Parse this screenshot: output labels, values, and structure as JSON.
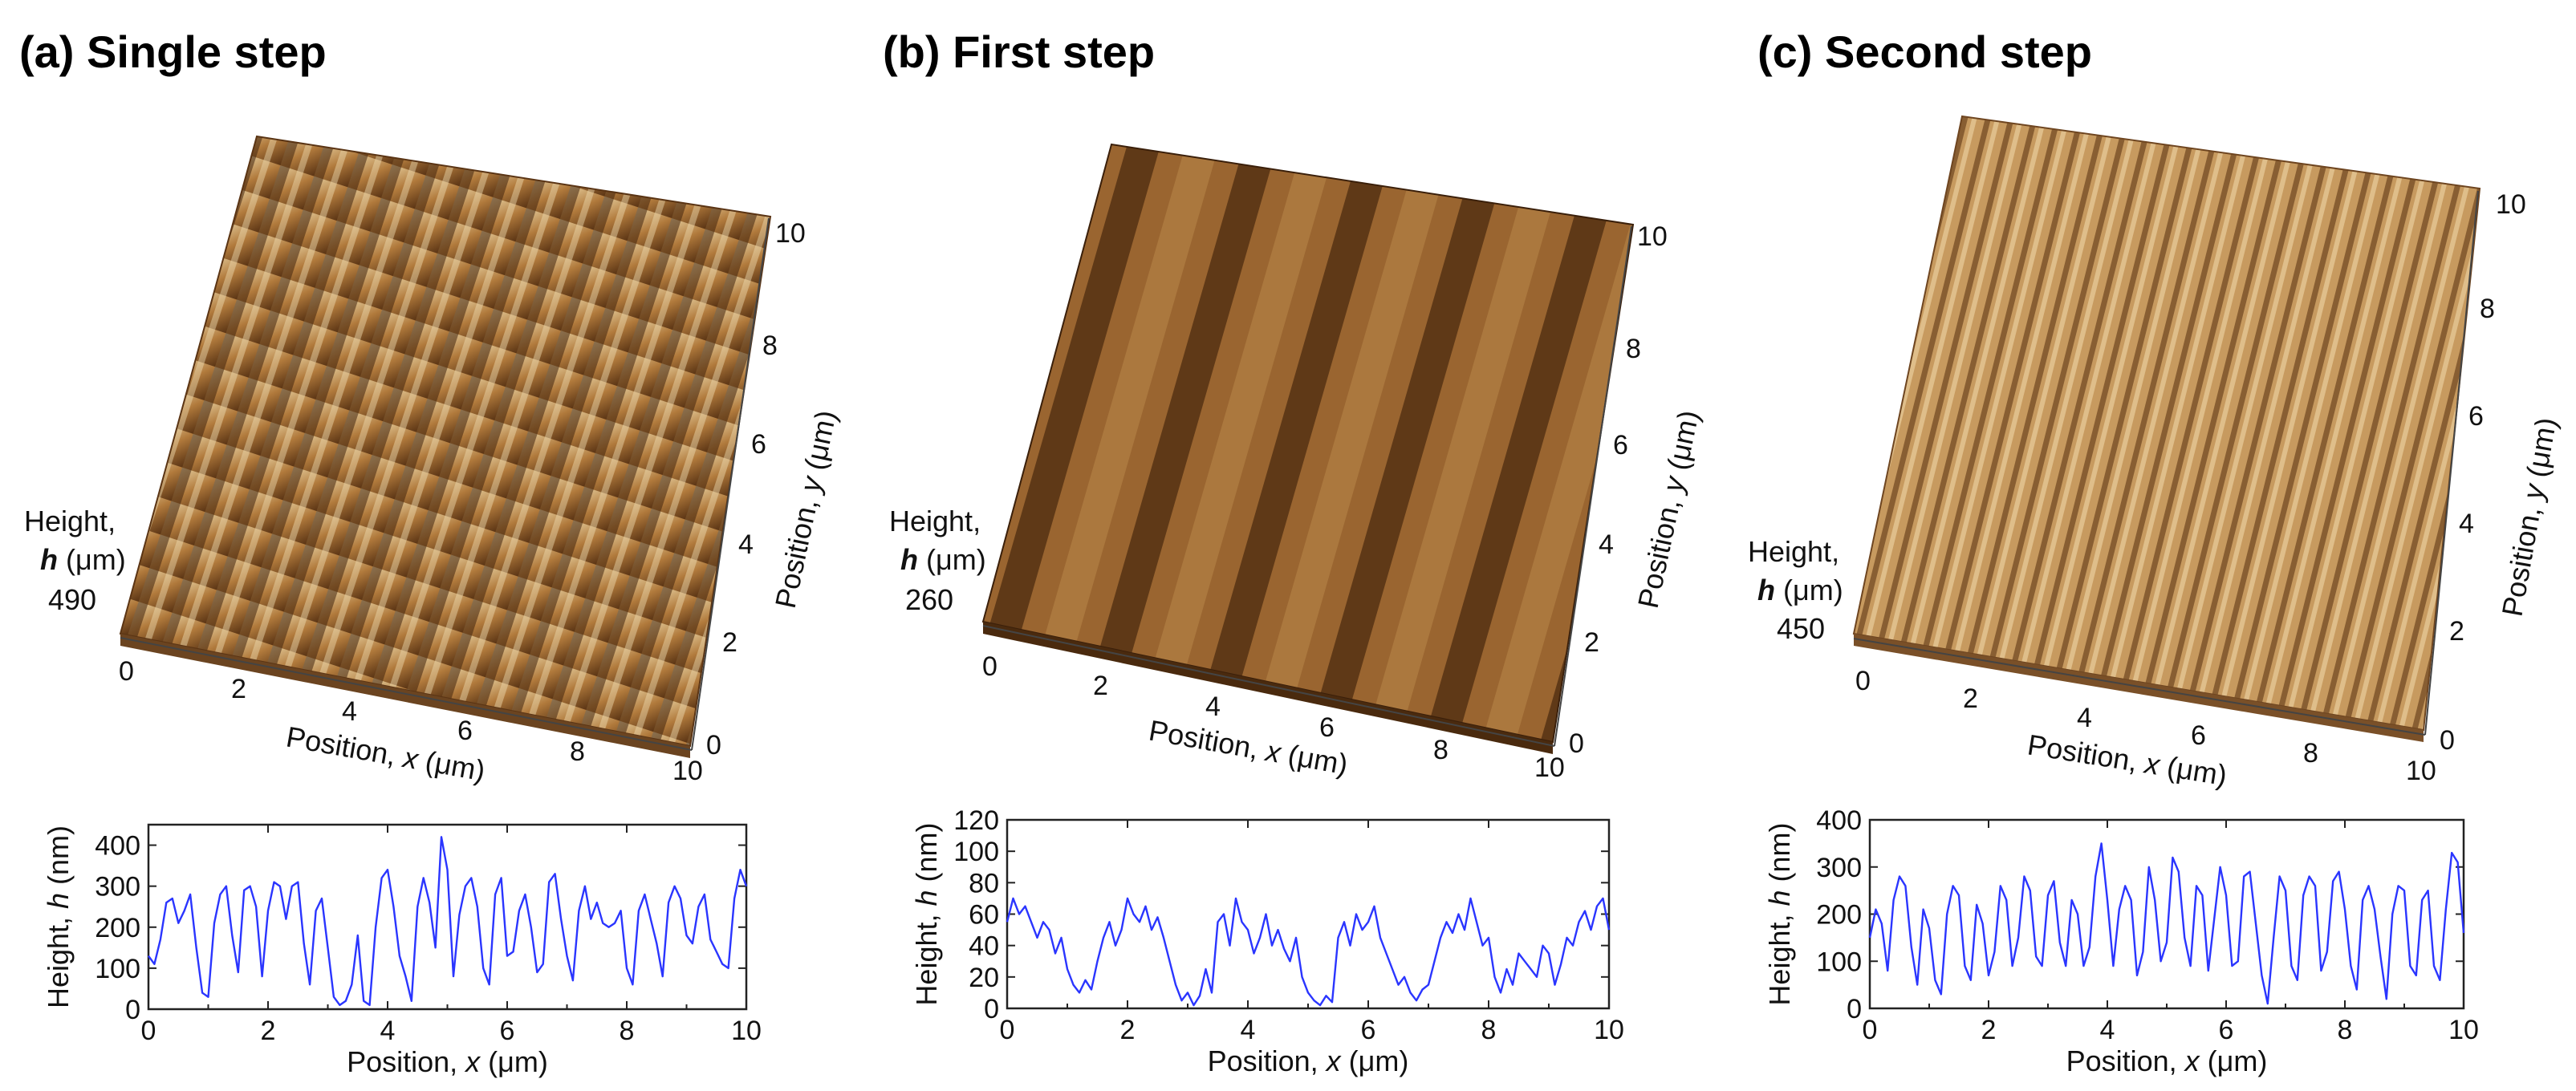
{
  "figure": {
    "panels": [
      {
        "id": "a",
        "title": "(a) Single step",
        "surface": {
          "height_label_line1": "Height,",
          "height_label_italic": "h",
          "height_label_unit": " (μm)",
          "height_value": "490",
          "x_label_prefix": "Position, ",
          "x_label_italic": "x",
          "x_label_unit": " (μm)",
          "y_label_prefix": "Position, ",
          "y_label_italic": "y",
          "y_label_unit": " (μm)",
          "x_ticks": [
            "0",
            "2",
            "4",
            "6",
            "8",
            "10"
          ],
          "y_ticks": [
            "0",
            "2",
            "4",
            "6",
            "8",
            "10"
          ],
          "colors": {
            "top": "#e6cf9f",
            "mid": "#b17a3c",
            "dark": "#3f220c"
          }
        }
      },
      {
        "id": "b",
        "title": "(b) First step",
        "surface": {
          "height_label_line1": "Height,",
          "height_label_italic": "h",
          "height_label_unit": " (μm)",
          "height_value": "260",
          "x_label_prefix": "Position, ",
          "x_label_italic": "x",
          "x_label_unit": " (μm)",
          "y_label_prefix": "Position, ",
          "y_label_italic": "y",
          "y_label_unit": " (μm)",
          "x_ticks": [
            "0",
            "2",
            "4",
            "6",
            "8",
            "10"
          ],
          "y_ticks": [
            "0",
            "2",
            "4",
            "6",
            "8",
            "10"
          ],
          "colors": {
            "top": "#b88249",
            "mid": "#8c5a28",
            "dark": "#3a1f0a"
          }
        }
      },
      {
        "id": "c",
        "title": "(c) Second step",
        "surface": {
          "height_label_line1": "Height,",
          "height_label_italic": "h",
          "height_label_unit": " (μm)",
          "height_value": "450",
          "x_label_prefix": "Position, ",
          "x_label_italic": "x",
          "x_label_unit": " (μm)",
          "y_label_prefix": "Position, ",
          "y_label_italic": "y",
          "y_label_unit": " (μm)",
          "x_ticks": [
            "0",
            "2",
            "4",
            "6",
            "8",
            "10"
          ],
          "y_ticks": [
            "0",
            "2",
            "4",
            "6",
            "8",
            "10"
          ],
          "colors": {
            "top": "#dcb77f",
            "mid": "#b48347",
            "dark": "#5e3a17"
          }
        }
      }
    ],
    "line_color": "#2a35ff"
  },
  "chart_data": [
    {
      "type": "line",
      "panel": "a",
      "xlabel": "Position, x (μm)",
      "ylabel": "Height, h (nm)",
      "xlim": [
        0,
        10
      ],
      "ylim": [
        0,
        450
      ],
      "xticks": [
        0,
        2,
        4,
        6,
        8,
        10
      ],
      "yticks": [
        0,
        100,
        200,
        300,
        400
      ],
      "x": [
        0,
        0.1,
        0.2,
        0.3,
        0.4,
        0.5,
        0.6,
        0.7,
        0.8,
        0.9,
        1.0,
        1.1,
        1.2,
        1.3,
        1.4,
        1.5,
        1.6,
        1.7,
        1.8,
        1.9,
        2.0,
        2.1,
        2.2,
        2.3,
        2.4,
        2.5,
        2.6,
        2.7,
        2.8,
        2.9,
        3.0,
        3.1,
        3.2,
        3.3,
        3.4,
        3.5,
        3.6,
        3.7,
        3.8,
        3.9,
        4.0,
        4.1,
        4.2,
        4.3,
        4.4,
        4.5,
        4.6,
        4.7,
        4.8,
        4.9,
        5.0,
        5.1,
        5.2,
        5.3,
        5.4,
        5.5,
        5.6,
        5.7,
        5.8,
        5.9,
        6.0,
        6.1,
        6.2,
        6.3,
        6.4,
        6.5,
        6.6,
        6.7,
        6.8,
        6.9,
        7.0,
        7.1,
        7.2,
        7.3,
        7.4,
        7.5,
        7.6,
        7.7,
        7.8,
        7.9,
        8.0,
        8.1,
        8.2,
        8.3,
        8.4,
        8.5,
        8.6,
        8.7,
        8.8,
        8.9,
        9.0,
        9.1,
        9.2,
        9.3,
        9.4,
        9.5,
        9.6,
        9.7,
        9.8,
        9.9,
        10.0
      ],
      "values": [
        130,
        110,
        170,
        260,
        270,
        210,
        240,
        280,
        150,
        40,
        30,
        210,
        280,
        300,
        180,
        90,
        290,
        300,
        250,
        80,
        240,
        310,
        300,
        220,
        300,
        310,
        160,
        60,
        240,
        270,
        150,
        30,
        10,
        20,
        60,
        180,
        20,
        10,
        200,
        320,
        340,
        250,
        130,
        80,
        20,
        250,
        320,
        260,
        150,
        420,
        340,
        80,
        230,
        300,
        320,
        250,
        100,
        60,
        280,
        320,
        130,
        140,
        240,
        280,
        200,
        90,
        110,
        310,
        330,
        220,
        130,
        70,
        240,
        300,
        220,
        260,
        210,
        200,
        210,
        240,
        100,
        60,
        240,
        280,
        220,
        160,
        80,
        260,
        300,
        270,
        180,
        160,
        250,
        280,
        170,
        140,
        110,
        100,
        270,
        340,
        300
      ]
    },
    {
      "type": "line",
      "panel": "b",
      "xlabel": "Position, x (μm)",
      "ylabel": "Height, h (nm)",
      "xlim": [
        0,
        10
      ],
      "ylim": [
        0,
        120
      ],
      "xticks": [
        0,
        2,
        4,
        6,
        8,
        10
      ],
      "yticks": [
        0,
        20,
        40,
        60,
        80,
        100,
        120
      ],
      "x": [
        0,
        0.1,
        0.2,
        0.3,
        0.4,
        0.5,
        0.6,
        0.7,
        0.8,
        0.9,
        1.0,
        1.1,
        1.2,
        1.3,
        1.4,
        1.5,
        1.6,
        1.7,
        1.8,
        1.9,
        2.0,
        2.1,
        2.2,
        2.3,
        2.4,
        2.5,
        2.6,
        2.7,
        2.8,
        2.9,
        3.0,
        3.1,
        3.2,
        3.3,
        3.4,
        3.5,
        3.6,
        3.7,
        3.8,
        3.9,
        4.0,
        4.1,
        4.2,
        4.3,
        4.4,
        4.5,
        4.6,
        4.7,
        4.8,
        4.9,
        5.0,
        5.1,
        5.2,
        5.3,
        5.4,
        5.5,
        5.6,
        5.7,
        5.8,
        5.9,
        6.0,
        6.1,
        6.2,
        6.3,
        6.4,
        6.5,
        6.6,
        6.7,
        6.8,
        6.9,
        7.0,
        7.1,
        7.2,
        7.3,
        7.4,
        7.5,
        7.6,
        7.7,
        7.8,
        7.9,
        8.0,
        8.1,
        8.2,
        8.3,
        8.4,
        8.5,
        8.6,
        8.7,
        8.8,
        8.9,
        9.0,
        9.1,
        9.2,
        9.3,
        9.4,
        9.5,
        9.6,
        9.7,
        9.8,
        9.9,
        10.0
      ],
      "values": [
        55,
        70,
        60,
        65,
        55,
        45,
        55,
        50,
        35,
        45,
        25,
        15,
        10,
        18,
        12,
        30,
        45,
        55,
        40,
        50,
        70,
        60,
        55,
        65,
        50,
        58,
        45,
        30,
        15,
        5,
        10,
        2,
        8,
        25,
        10,
        55,
        60,
        40,
        70,
        55,
        50,
        35,
        45,
        60,
        40,
        50,
        38,
        30,
        45,
        20,
        10,
        5,
        2,
        8,
        4,
        45,
        55,
        40,
        60,
        50,
        55,
        65,
        45,
        35,
        25,
        15,
        20,
        10,
        5,
        12,
        15,
        30,
        45,
        55,
        48,
        60,
        50,
        70,
        55,
        40,
        45,
        20,
        10,
        25,
        15,
        35,
        30,
        25,
        20,
        40,
        35,
        15,
        28,
        45,
        40,
        55,
        62,
        50,
        65,
        70,
        50
      ]
    },
    {
      "type": "line",
      "panel": "c",
      "xlabel": "Position, x (μm)",
      "ylabel": "Height, h (nm)",
      "xlim": [
        0,
        10
      ],
      "ylim": [
        0,
        400
      ],
      "xticks": [
        0,
        2,
        4,
        6,
        8,
        10
      ],
      "yticks": [
        0,
        100,
        200,
        300,
        400
      ],
      "x": [
        0,
        0.1,
        0.2,
        0.3,
        0.4,
        0.5,
        0.6,
        0.7,
        0.8,
        0.9,
        1.0,
        1.1,
        1.2,
        1.3,
        1.4,
        1.5,
        1.6,
        1.7,
        1.8,
        1.9,
        2.0,
        2.1,
        2.2,
        2.3,
        2.4,
        2.5,
        2.6,
        2.7,
        2.8,
        2.9,
        3.0,
        3.1,
        3.2,
        3.3,
        3.4,
        3.5,
        3.6,
        3.7,
        3.8,
        3.9,
        4.0,
        4.1,
        4.2,
        4.3,
        4.4,
        4.5,
        4.6,
        4.7,
        4.8,
        4.9,
        5.0,
        5.1,
        5.2,
        5.3,
        5.4,
        5.5,
        5.6,
        5.7,
        5.8,
        5.9,
        6.0,
        6.1,
        6.2,
        6.3,
        6.4,
        6.5,
        6.6,
        6.7,
        6.8,
        6.9,
        7.0,
        7.1,
        7.2,
        7.3,
        7.4,
        7.5,
        7.6,
        7.7,
        7.8,
        7.9,
        8.0,
        8.1,
        8.2,
        8.3,
        8.4,
        8.5,
        8.6,
        8.7,
        8.8,
        8.9,
        9.0,
        9.1,
        9.2,
        9.3,
        9.4,
        9.5,
        9.6,
        9.7,
        9.8,
        9.9,
        10.0
      ],
      "values": [
        150,
        210,
        180,
        80,
        230,
        280,
        260,
        130,
        50,
        210,
        170,
        60,
        30,
        200,
        260,
        240,
        90,
        60,
        220,
        180,
        70,
        120,
        260,
        230,
        90,
        150,
        280,
        250,
        110,
        90,
        240,
        270,
        140,
        90,
        230,
        200,
        90,
        130,
        280,
        350,
        230,
        90,
        210,
        260,
        230,
        70,
        120,
        300,
        230,
        100,
        140,
        320,
        290,
        150,
        90,
        260,
        240,
        80,
        190,
        300,
        240,
        90,
        100,
        280,
        290,
        180,
        70,
        10,
        150,
        280,
        250,
        90,
        60,
        240,
        280,
        260,
        80,
        120,
        270,
        290,
        210,
        90,
        40,
        230,
        260,
        210,
        110,
        20,
        200,
        260,
        250,
        90,
        70,
        230,
        250,
        90,
        60,
        210,
        330,
        310,
        160
      ]
    }
  ]
}
